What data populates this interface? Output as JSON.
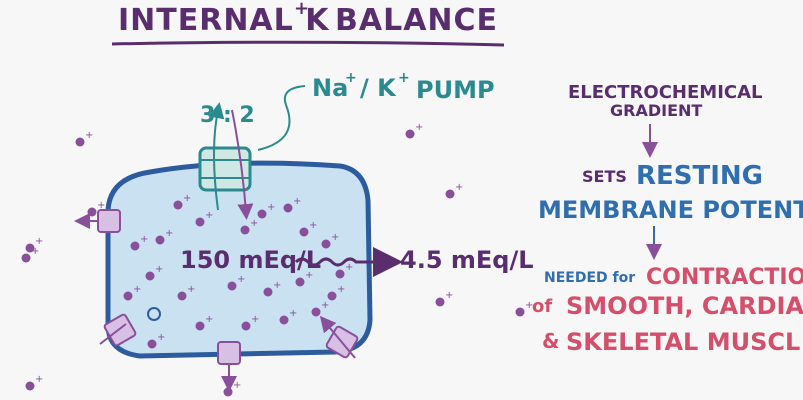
{
  "title": "INTERNAL K",
  "title_superscript": "+",
  "title_rest": "BALANCE",
  "pump": {
    "label_na": "Na",
    "label_sup1": "+",
    "label_slash": "/ K",
    "label_sup2": "+",
    "label_pump": "PUMP",
    "ratio": "3 : 2"
  },
  "concentration": {
    "inside": "150 mEq/L",
    "outside": "4.5 mEq/L"
  },
  "flow": {
    "line1": "ELECTROCHEMICAL",
    "line2": "GRADIENT",
    "sets_prefix": "SETS",
    "sets_main": "RESTING",
    "potential": "MEMBRANE POTENTIAL",
    "needed_prefix": "NEEDED for",
    "needed_main": "CONTRACTION",
    "of_prefix": "of",
    "muscle1": "SMOOTH, CARDIAC",
    "amp": "&",
    "muscle2": "SKELETAL MUSCL"
  },
  "ion_symbol": "+",
  "colors": {
    "cell_fill": "#c9e1f0",
    "cell_border": "#2d5c9e",
    "ion": "#8a4f9a",
    "teal": "#2a8a8f",
    "purple_text": "#5a2d6e",
    "blue_text": "#2f6fb0",
    "red_text": "#d64f6a",
    "channel": "#b58cc7"
  }
}
